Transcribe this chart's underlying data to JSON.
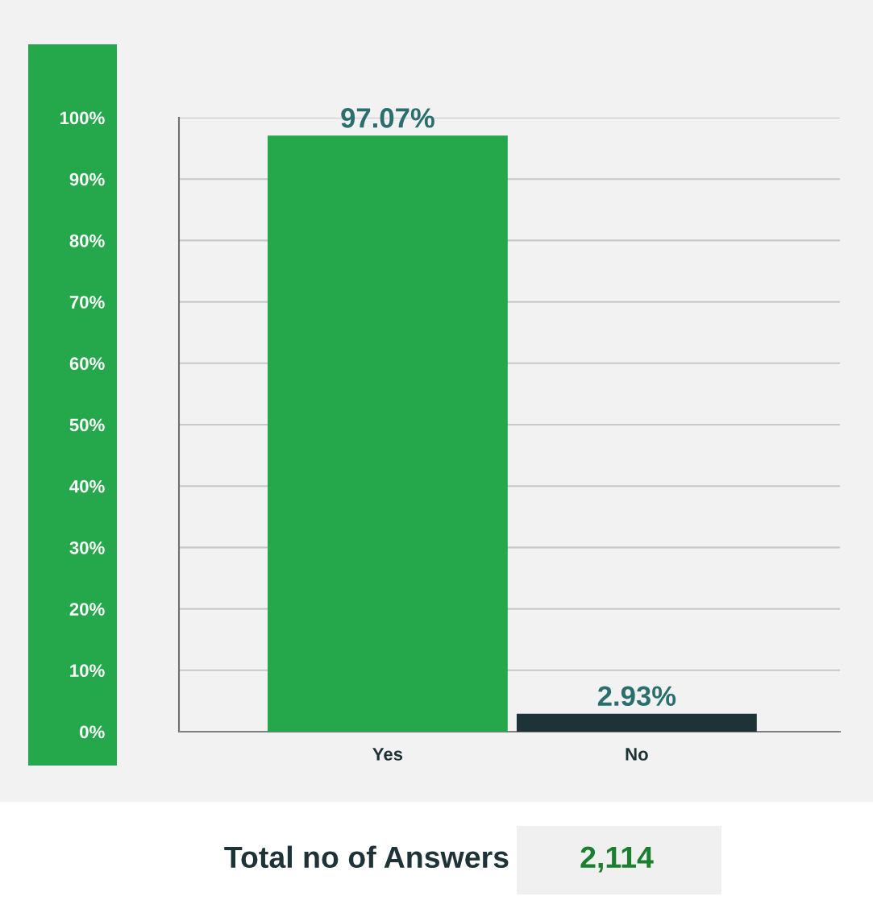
{
  "chart_data": {
    "type": "bar",
    "categories": [
      "Yes",
      "No"
    ],
    "values": [
      97.07,
      2.93
    ],
    "colors": [
      "#24a84b",
      "#1e3338"
    ],
    "value_labels": [
      "97.07%",
      "2.93%"
    ],
    "ylim": [
      0,
      100
    ],
    "yticks": [
      {
        "value": 0,
        "label": "0%"
      },
      {
        "value": 10,
        "label": "10%"
      },
      {
        "value": 20,
        "label": "20%"
      },
      {
        "value": 30,
        "label": "30%"
      },
      {
        "value": 40,
        "label": "40%"
      },
      {
        "value": 50,
        "label": "50%"
      },
      {
        "value": 60,
        "label": "60%"
      },
      {
        "value": 70,
        "label": "70%"
      },
      {
        "value": 80,
        "label": "80%"
      },
      {
        "value": 90,
        "label": "90%"
      },
      {
        "value": 100,
        "label": "100%"
      }
    ],
    "grid": "y",
    "annotations": [
      "Total no of Answers",
      "2,114"
    ]
  }
}
